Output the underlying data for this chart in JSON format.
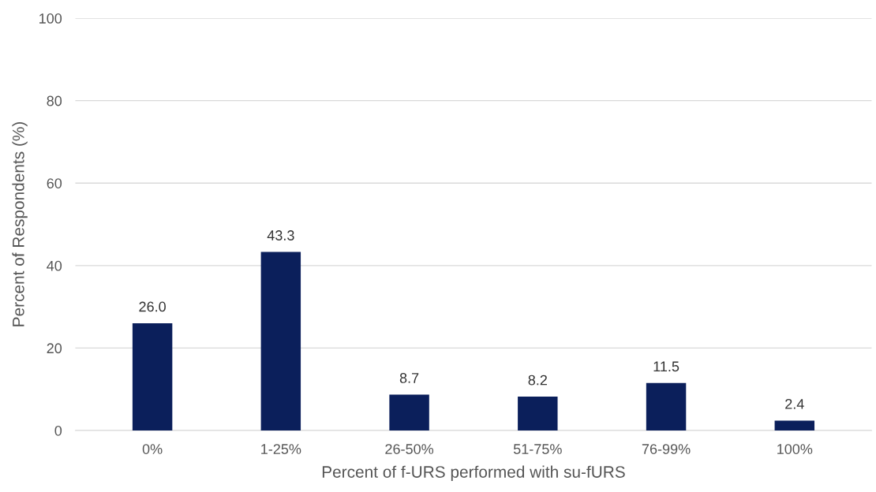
{
  "chart_data": {
    "type": "bar",
    "xlabel": "Percent of f-URS performed with su-fURS",
    "ylabel": "Percent of Respondents (%)",
    "categories": [
      "0%",
      "1-25%",
      "26-50%",
      "51-75%",
      "76-99%",
      "100%"
    ],
    "values": [
      26.0,
      43.3,
      8.7,
      8.2,
      11.5,
      2.4
    ],
    "value_labels": [
      "26.0",
      "43.3",
      "8.7",
      "8.2",
      "11.5",
      "2.4"
    ],
    "color": "#0b1f5b",
    "ylim": [
      0,
      100
    ],
    "yticks": [
      0,
      20,
      40,
      60,
      80,
      100
    ],
    "grid": "y",
    "legend": false
  }
}
